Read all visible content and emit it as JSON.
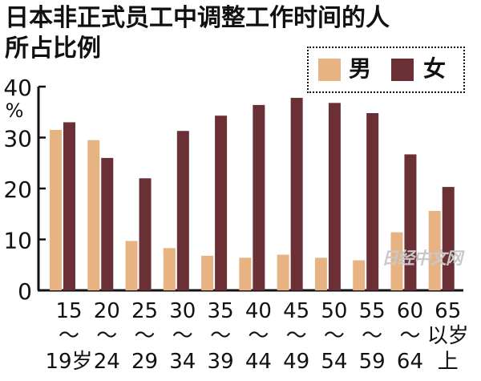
{
  "title": [
    "日本非正式员工中调整工作时间的人",
    "所占比例"
  ],
  "legend": [
    {
      "label": "男",
      "color": "#e8b382"
    },
    {
      "label": "女",
      "color": "#6b3036"
    }
  ],
  "watermark": "日经中文网",
  "chart_data": {
    "type": "bar",
    "title": "日本非正式员工中调整工作时间的人所占比例",
    "ylabel": "%",
    "ylim": [
      0,
      40
    ],
    "yticks": [
      "0",
      "10",
      "20",
      "30",
      "40"
    ],
    "grid": false,
    "legend_position": "top-right",
    "categories": [
      "15～19岁",
      "20～24",
      "25～29",
      "30～34",
      "35～39",
      "40～44",
      "45～49",
      "50～54",
      "55～59",
      "60～64",
      "65以上"
    ],
    "category_labels": [
      [
        "15",
        "～",
        "19岁"
      ],
      [
        "20",
        "～",
        "24"
      ],
      [
        "25",
        "～",
        "29"
      ],
      [
        "30",
        "～",
        "34"
      ],
      [
        "35",
        "～",
        "39"
      ],
      [
        "40",
        "～",
        "44"
      ],
      [
        "45",
        "～",
        "49"
      ],
      [
        "50",
        "～",
        "54"
      ],
      [
        "55",
        "～",
        "59"
      ],
      [
        "60",
        "～",
        "64"
      ],
      [
        "65",
        "以岁",
        "上"
      ]
    ],
    "series": [
      {
        "name": "男",
        "color": "#e8b382",
        "values": [
          31.5,
          29.5,
          9.7,
          8.3,
          6.8,
          6.4,
          7.0,
          6.4,
          5.9,
          11.4,
          15.6
        ]
      },
      {
        "name": "女",
        "color": "#6b3036",
        "values": [
          33.0,
          26.0,
          22.0,
          31.3,
          34.3,
          36.4,
          37.8,
          36.8,
          34.8,
          26.7,
          20.3
        ]
      }
    ]
  }
}
